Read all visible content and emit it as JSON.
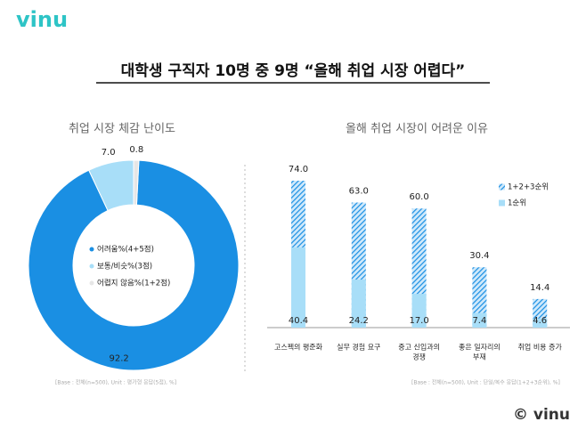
{
  "brand": "vinu",
  "title": "대학생 구직자 10명 중 9명 “올해 취업 시장 어렵다”",
  "copyright": "© vinu",
  "chart_data": [
    {
      "type": "pie",
      "title": "취업 시장 체감 난이도",
      "categories": [
        "어려움%(4+5점)",
        "보통/비슷%(3점)",
        "어렵지 않음%(1+2점)"
      ],
      "values": [
        92.2,
        7.0,
        0.8
      ],
      "value_labels": [
        "92.2",
        "7.0",
        "0.8"
      ],
      "colors": [
        "#1a8fe3",
        "#a8def8",
        "#e6e6e6"
      ],
      "note": "[Base : 전체(n=500), Unit : 평가형 응답(5점), %]"
    },
    {
      "type": "bar",
      "title": "올해 취업 시장이 어려운 이유",
      "categories": [
        [
          "고스펙의 평준화"
        ],
        [
          "실무 경험 요구"
        ],
        [
          "중고 신입과의",
          "경쟁"
        ],
        [
          "좋은 일자리의",
          "부재"
        ],
        [
          "취업 비용 증가"
        ]
      ],
      "series": [
        {
          "name": "1+2+3순위",
          "color": "#1a8fe3",
          "values": [
            74.0,
            63.0,
            60.0,
            30.4,
            14.4
          ],
          "value_labels": [
            "74.0",
            "63.0",
            "60.0",
            "30.4",
            "14.4"
          ]
        },
        {
          "name": "1순위",
          "color": "#a8def8",
          "values": [
            40.4,
            24.2,
            17.0,
            7.4,
            4.6
          ],
          "value_labels": [
            "40.4",
            "24.2",
            "17.0",
            "7.4",
            "4.6"
          ]
        }
      ],
      "note": "[Base : 전체(n=500), Unit : 단일/복수 응답(1+2+3순위), %]"
    }
  ]
}
